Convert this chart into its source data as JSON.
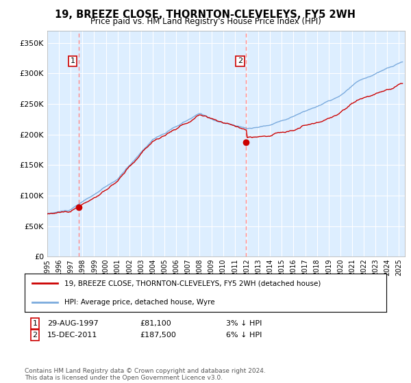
{
  "title": "19, BREEZE CLOSE, THORNTON-CLEVELEYS, FY5 2WH",
  "subtitle": "Price paid vs. HM Land Registry's House Price Index (HPI)",
  "legend_line1": "19, BREEZE CLOSE, THORNTON-CLEVELEYS, FY5 2WH (detached house)",
  "legend_line2": "HPI: Average price, detached house, Wyre",
  "annotation1_date": "29-AUG-1997",
  "annotation1_price": "£81,100",
  "annotation1_hpi": "3% ↓ HPI",
  "annotation2_date": "15-DEC-2011",
  "annotation2_price": "£187,500",
  "annotation2_hpi": "6% ↓ HPI",
  "footer": "Contains HM Land Registry data © Crown copyright and database right 2024.\nThis data is licensed under the Open Government Licence v3.0.",
  "hpi_color": "#7aaadd",
  "price_color": "#cc0000",
  "dot_color": "#cc0000",
  "vline_color": "#ff8888",
  "background_color": "#ddeeff",
  "grid_color": "#ffffff",
  "ylim": [
    0,
    370000
  ],
  "yticks": [
    0,
    50000,
    100000,
    150000,
    200000,
    250000,
    300000,
    350000
  ],
  "xlim_start": 1995.0,
  "xlim_end": 2025.5,
  "sale1_x": 1997.66,
  "sale1_y": 81100,
  "sale2_x": 2011.96,
  "sale2_y": 187500
}
